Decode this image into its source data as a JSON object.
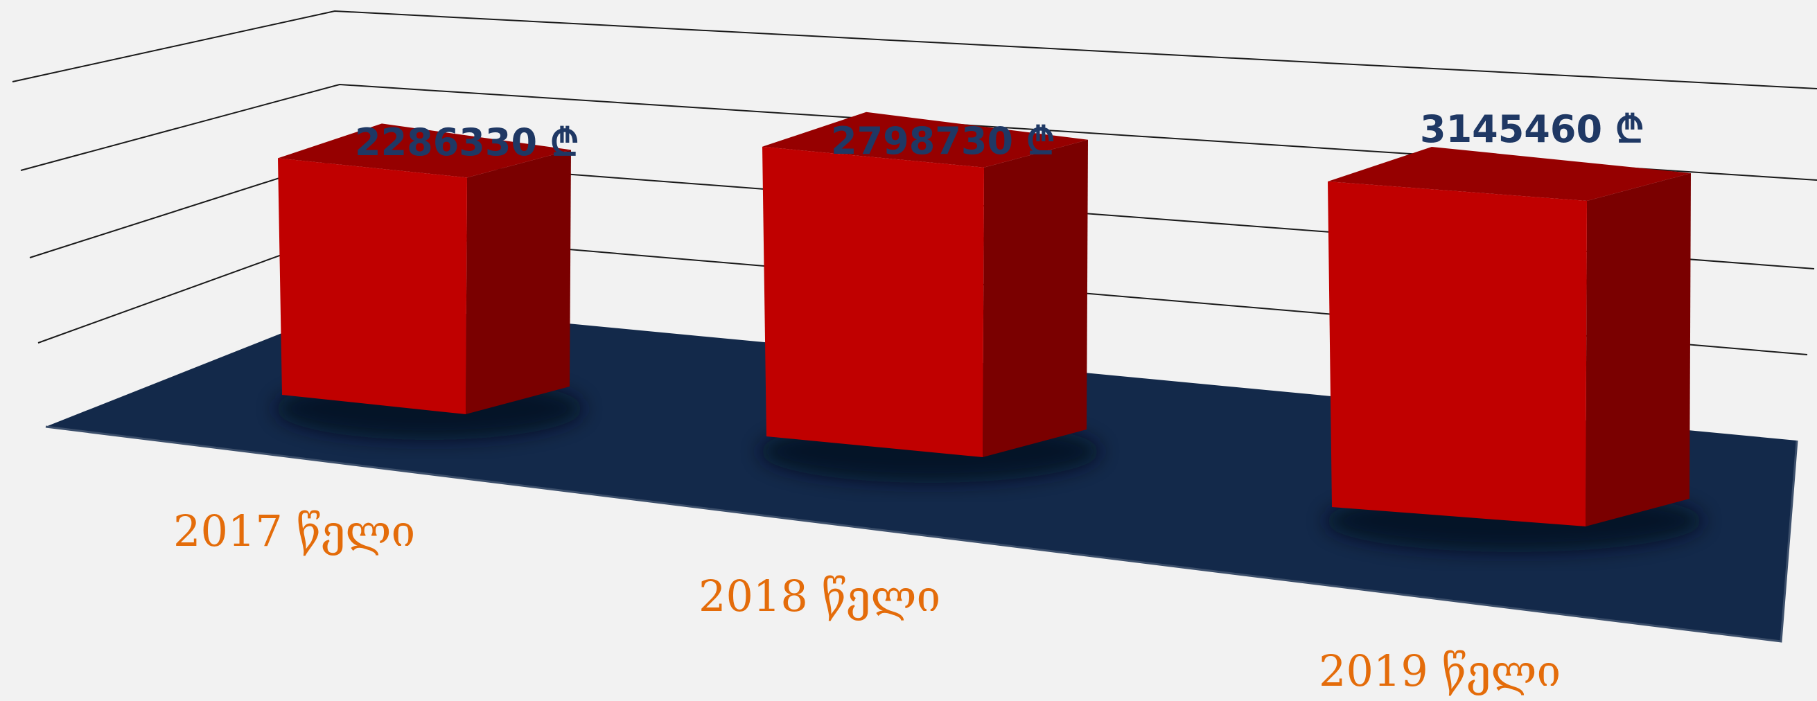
{
  "chart_data": {
    "type": "bar",
    "style": "3d-column",
    "categories": [
      "2017 წელი",
      "2018 წელი",
      "2019 წელი"
    ],
    "values": [
      2286330,
      2798730,
      3145460
    ],
    "value_labels": [
      "2286330 ₾",
      "2798730 ₾",
      "3145460 ₾"
    ],
    "currency_symbol": "₾",
    "title": "",
    "xlabel": "",
    "ylabel": "",
    "grid": true,
    "legend": "none",
    "colors": {
      "bar_front": "#c00000",
      "bar_top": "#960000",
      "bar_side": "#7a0000",
      "floor": "#13294a",
      "value_text": "#1f3864",
      "category_text": "#e46c0a",
      "background": "#f2f2f2"
    }
  }
}
